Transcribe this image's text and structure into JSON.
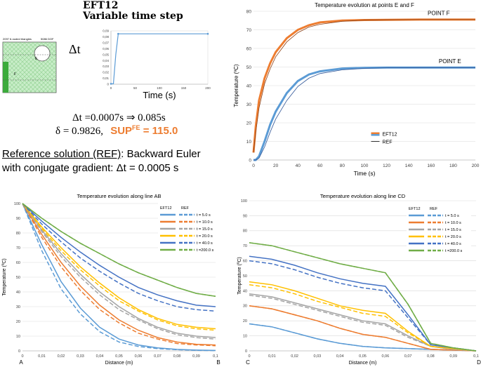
{
  "header": {
    "title": "EFT12",
    "subtitle": "Variable time step",
    "mesh_caption_left": "2097 6-noded triangles",
    "mesh_caption_right": "5086 DOF",
    "mesh_label_e": "E",
    "mesh_label_f": "F"
  },
  "formulas": {
    "dt_symbol": "Δt",
    "dt_line": "Δt =0.0007s  ⇒ 0.085s",
    "delta_line": "δ = 0.9826,",
    "sup_label": "SUP",
    "sup_superscript": "FE",
    "sup_value": " = 115.0",
    "ref_title": "Reference solution (REF)",
    "ref_rest": ": Backward Euler",
    "ref_line2": "with conjugate gradient: Δt = 0.0005 s"
  },
  "colors": {
    "blue": "#5b9bd5",
    "orange": "#ed7d31",
    "gray": "#a5a5a5",
    "yellow": "#ffc000",
    "darkblue": "#4472c4",
    "green": "#70ad47",
    "accent": "#ed7d31",
    "mesh_green": "#7ed67e"
  },
  "chart_data": [
    {
      "id": "dt",
      "type": "line",
      "title": "",
      "xlabel": "Time (s)",
      "ylabel": "Δt",
      "xlim": [
        0,
        200
      ],
      "ylim": [
        0,
        0.09
      ],
      "xticks": [
        0,
        50,
        100,
        150,
        200
      ],
      "xticklabels": [
        "0",
        "50",
        "100",
        "150",
        "200"
      ],
      "yticks": [
        0,
        0.01,
        0.02,
        0.03,
        0.04,
        0.05,
        0.06,
        0.07,
        0.08,
        0.09
      ],
      "yticklabels": [
        "0",
        "0,01",
        "0,02",
        "0,03",
        "0,04",
        "0,05",
        "0,06",
        "0,07",
        "0,08",
        "0,09"
      ],
      "series": [
        {
          "name": "dt",
          "x": [
            0,
            5,
            10,
            15,
            200
          ],
          "y": [
            0.0007,
            0.0007,
            0.05,
            0.085,
            0.085
          ]
        }
      ]
    },
    {
      "id": "ef",
      "type": "line",
      "title": "Temperature evolution at points E and F",
      "xlabel": "Time  (s)",
      "ylabel": "Temperature (ºC)",
      "xlim": [
        0,
        200
      ],
      "ylim": [
        0,
        80
      ],
      "xticks": [
        0,
        20,
        40,
        60,
        80,
        100,
        120,
        140,
        160,
        180,
        200
      ],
      "xticklabels": [
        "0",
        "20",
        "40",
        "60",
        "80",
        "100",
        "120",
        "140",
        "160",
        "180",
        "200"
      ],
      "yticks": [
        0,
        10,
        20,
        30,
        40,
        50,
        60,
        70,
        80
      ],
      "yticklabels": [
        "0",
        "10",
        "20",
        "30",
        "40",
        "50",
        "60",
        "70",
        "80"
      ],
      "legend": [
        {
          "label": "EFT12",
          "style": "bar"
        },
        {
          "label": "REF",
          "style": "line"
        }
      ],
      "annotations": [
        "POINT F",
        "POINT E"
      ],
      "series": [
        {
          "name": "EFT12 F",
          "x": [
            0,
            2,
            5,
            10,
            15,
            20,
            30,
            40,
            50,
            60,
            80,
            100,
            120,
            150,
            200
          ],
          "y": [
            4,
            18,
            32,
            44,
            52,
            58,
            65.5,
            70,
            72.5,
            74,
            75,
            75.3,
            75.4,
            75.5,
            75.5
          ]
        },
        {
          "name": "REF F",
          "x": [
            0,
            2,
            5,
            10,
            15,
            20,
            30,
            40,
            50,
            60,
            80,
            100,
            120,
            150,
            200
          ],
          "y": [
            4,
            15,
            28,
            41,
            49,
            55.5,
            63.5,
            68.5,
            71.5,
            73,
            74.6,
            75.2,
            75.4,
            75.5,
            75.5
          ]
        },
        {
          "name": "EFT12 E",
          "x": [
            0,
            2,
            5,
            10,
            15,
            20,
            30,
            40,
            50,
            60,
            80,
            100,
            120,
            150,
            200
          ],
          "y": [
            0,
            0,
            2,
            10,
            19,
            26,
            36,
            42.5,
            46,
            47.7,
            49.2,
            49.6,
            49.7,
            49.7,
            49.7
          ]
        },
        {
          "name": "REF E",
          "x": [
            0,
            2,
            5,
            10,
            15,
            20,
            30,
            40,
            50,
            60,
            80,
            100,
            120,
            150,
            200
          ],
          "y": [
            0,
            0,
            1,
            7,
            15,
            22,
            32,
            39.5,
            44,
            46.5,
            48.5,
            49.3,
            49.6,
            49.7,
            49.7
          ]
        }
      ]
    },
    {
      "id": "ab",
      "type": "line",
      "title": "Temperature evolution along line AB",
      "xlabel": "Distance (m)",
      "ylabel": "Temperature (ºC)",
      "xlim": [
        0,
        0.1
      ],
      "ylim": [
        0,
        100
      ],
      "xticks": [
        0,
        0.01,
        0.02,
        0.03,
        0.04,
        0.05,
        0.06,
        0.07,
        0.08,
        0.09,
        0.1
      ],
      "xticklabels": [
        "0",
        "0,01",
        "0,02",
        "0,03",
        "0,04",
        "0,05",
        "0,06",
        "0,07",
        "0,08",
        "0,09",
        "0,1"
      ],
      "yticks": [
        0,
        10,
        20,
        30,
        40,
        50,
        60,
        70,
        80,
        90,
        100
      ],
      "yticklabels": [
        "0",
        "10",
        "20",
        "30",
        "40",
        "50",
        "60",
        "70",
        "80",
        "90",
        "100"
      ],
      "point_labels": [
        "A",
        "B"
      ],
      "legend_headers": [
        "EFT12",
        "REF"
      ],
      "legend_labels": [
        "t =   5.0 s",
        "t =  10.0 s",
        "t =  15.0 s",
        "t =  20.0 s",
        "t =  40.0 s",
        "t =200.0 s"
      ],
      "x": [
        0,
        0.01,
        0.02,
        0.03,
        0.04,
        0.05,
        0.06,
        0.07,
        0.08,
        0.09,
        0.1
      ],
      "series": [
        {
          "name": "t = 5.0 s",
          "color": "blue",
          "eft": [
            100,
            72,
            47,
            29,
            16,
            8,
            4,
            2,
            1,
            0.5,
            0.3
          ],
          "ref": [
            100,
            68,
            42,
            25,
            13,
            6,
            3,
            1.5,
            0.8,
            0.4,
            0.2
          ]
        },
        {
          "name": "t = 10.0 s",
          "color": "orange",
          "eft": [
            100,
            79,
            60,
            44,
            31,
            21,
            14,
            9,
            6,
            4.5,
            4
          ],
          "ref": [
            100,
            77,
            57,
            41,
            28,
            19,
            12,
            8,
            5,
            4,
            3.5
          ]
        },
        {
          "name": "t = 15.0 s",
          "color": "gray",
          "eft": [
            100,
            82,
            66,
            52,
            40,
            30,
            22,
            16,
            12,
            10,
            9
          ],
          "ref": [
            100,
            81,
            64,
            50,
            38,
            28,
            21,
            15,
            11,
            9,
            8
          ]
        },
        {
          "name": "t = 20.0 s",
          "color": "yellow",
          "eft": [
            100,
            84,
            70,
            57,
            46,
            36,
            28,
            22,
            18,
            16,
            15
          ],
          "ref": [
            100,
            83,
            68,
            55,
            44,
            34,
            27,
            21,
            17,
            15,
            14
          ]
        },
        {
          "name": "t = 40.0 s",
          "color": "darkblue",
          "eft": [
            100,
            88,
            77,
            67,
            58,
            50,
            43,
            38,
            34,
            31,
            30
          ],
          "ref": [
            100,
            86,
            74,
            63,
            54,
            46,
            39,
            34,
            30,
            28,
            27
          ]
        },
        {
          "name": "t = 200.0 s",
          "color": "green",
          "eft": [
            100,
            90,
            81,
            73,
            66,
            59,
            53,
            48,
            43,
            39,
            37
          ],
          "ref": [
            100,
            90,
            81,
            73,
            66,
            59,
            53,
            48,
            43,
            39,
            37
          ]
        }
      ]
    },
    {
      "id": "cd",
      "type": "line",
      "title": "Temperature evolution along line CD",
      "xlabel": "Distance (m)",
      "ylabel": "Temperature (ºC)",
      "xlim": [
        0,
        0.1
      ],
      "ylim": [
        0,
        100
      ],
      "xticks": [
        0,
        0.01,
        0.02,
        0.03,
        0.04,
        0.05,
        0.06,
        0.07,
        0.08,
        0.09,
        0.1
      ],
      "xticklabels": [
        "0",
        "0,01",
        "0,02",
        "0,03",
        "0,04",
        "0,05",
        "0,06",
        "0,07",
        "0,08",
        "0,09",
        "0,1"
      ],
      "yticks": [
        0,
        10,
        20,
        30,
        40,
        50,
        60,
        70,
        80,
        90,
        100
      ],
      "yticklabels": [
        "0",
        "10",
        "20",
        "30",
        "40",
        "50",
        "60",
        "70",
        "80",
        "90",
        "100"
      ],
      "point_labels": [
        "C",
        "D"
      ],
      "legend_headers": [
        "EFT12",
        "REF"
      ],
      "legend_labels": [
        "t =   5.0 s",
        "t =  10.0 s",
        "t =  15.0 s",
        "t =  20.0 s",
        "t =  40.0 s",
        "t =200.0 s"
      ],
      "x": [
        0,
        0.01,
        0.02,
        0.03,
        0.04,
        0.05,
        0.06,
        0.07,
        0.08,
        0.09,
        0.1
      ],
      "series": [
        {
          "name": "t = 5.0 s",
          "color": "blue",
          "eft": [
            18,
            16,
            12,
            8,
            5,
            3,
            2,
            1.5,
            1,
            0.5,
            0
          ],
          "ref": [
            18,
            16,
            12,
            8,
            5,
            3,
            2,
            1.5,
            1,
            0.5,
            0
          ]
        },
        {
          "name": "t = 10.0 s",
          "color": "orange",
          "eft": [
            30,
            28,
            24,
            20,
            15,
            11,
            9,
            5,
            1,
            0.5,
            0
          ],
          "ref": [
            30,
            28,
            24,
            20,
            15,
            11,
            9,
            5,
            1,
            0.5,
            0
          ]
        },
        {
          "name": "t = 15.0 s",
          "color": "gray",
          "eft": [
            38,
            36,
            32,
            28,
            24,
            20,
            18,
            10,
            3,
            1,
            0
          ],
          "ref": [
            37,
            35,
            31,
            27,
            23,
            19,
            17,
            9,
            3,
            1,
            0
          ]
        },
        {
          "name": "t = 20.0 s",
          "color": "yellow",
          "eft": [
            46,
            44,
            40,
            35,
            30,
            27,
            25,
            13,
            3,
            1.5,
            0
          ],
          "ref": [
            44,
            42,
            38,
            33,
            29,
            25,
            23,
            12,
            3,
            1.5,
            0
          ]
        },
        {
          "name": "t = 40.0 s",
          "color": "darkblue",
          "eft": [
            63,
            61,
            57,
            52,
            48,
            45,
            43,
            24,
            4,
            2,
            0
          ],
          "ref": [
            60,
            58,
            54,
            49,
            45,
            42,
            40,
            22,
            4,
            2,
            0
          ]
        },
        {
          "name": "t = 200.0 s",
          "color": "green",
          "eft": [
            72,
            70,
            66,
            62,
            58,
            55,
            52,
            31,
            5,
            2,
            0
          ],
          "ref": [
            72,
            70,
            66,
            62,
            58,
            55,
            52,
            31,
            5,
            2,
            0
          ]
        }
      ]
    }
  ]
}
